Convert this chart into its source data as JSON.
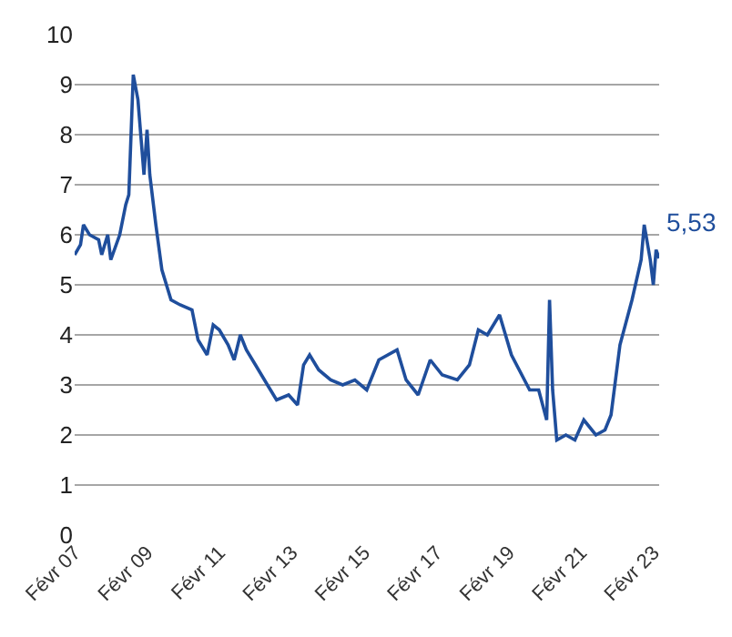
{
  "chart_data": {
    "type": "line",
    "x": [
      "2007-02-01",
      "2007-04-01",
      "2007-05-01",
      "2007-07-01",
      "2007-10-01",
      "2007-11-01",
      "2008-01-01",
      "2008-02-01",
      "2008-05-01",
      "2008-07-01",
      "2008-08-01",
      "2008-09-15",
      "2008-11-01",
      "2009-01-01",
      "2009-02-01",
      "2009-03-01",
      "2009-05-01",
      "2009-07-01",
      "2009-10-01",
      "2010-01-01",
      "2010-05-01",
      "2010-07-01",
      "2010-10-01",
      "2010-12-01",
      "2011-02-01",
      "2011-05-01",
      "2011-07-01",
      "2011-09-01",
      "2011-11-01",
      "2012-02-01",
      "2012-06-01",
      "2012-09-01",
      "2013-01-01",
      "2013-04-01",
      "2013-06-01",
      "2013-08-01",
      "2013-11-01",
      "2014-03-01",
      "2014-07-01",
      "2014-11-01",
      "2015-03-01",
      "2015-07-01",
      "2016-01-01",
      "2016-04-01",
      "2016-08-01",
      "2016-12-01",
      "2017-04-01",
      "2017-09-01",
      "2018-01-01",
      "2018-04-01",
      "2018-07-01",
      "2018-11-01",
      "2019-03-01",
      "2019-09-01",
      "2019-12-01",
      "2020-02-20",
      "2020-03-20",
      "2020-04-20",
      "2020-06-01",
      "2020-09-01",
      "2020-12-01",
      "2021-03-01",
      "2021-07-01",
      "2021-10-01",
      "2021-12-01",
      "2022-03-01",
      "2022-07-01",
      "2022-10-01",
      "2022-11-01",
      "2023-01-01",
      "2023-02-01",
      "2023-03-01",
      "2023-04-01"
    ],
    "series": [
      {
        "color": "#1f4e9c",
        "values": [
          5.6,
          5.8,
          6.2,
          6.0,
          5.9,
          5.6,
          6.0,
          5.5,
          6.0,
          6.6,
          6.8,
          9.2,
          8.7,
          7.2,
          8.1,
          7.2,
          6.2,
          5.3,
          4.7,
          4.6,
          4.5,
          3.9,
          3.6,
          4.2,
          4.1,
          3.8,
          3.5,
          4.0,
          3.7,
          3.4,
          3.0,
          2.7,
          2.8,
          2.6,
          3.4,
          3.6,
          3.3,
          3.1,
          3.0,
          3.1,
          2.9,
          3.5,
          3.7,
          3.1,
          2.8,
          3.5,
          3.2,
          3.1,
          3.4,
          4.1,
          4.0,
          4.4,
          3.6,
          2.9,
          2.9,
          2.3,
          4.7,
          2.9,
          1.9,
          2.0,
          1.9,
          2.3,
          2.0,
          2.1,
          2.4,
          3.8,
          4.7,
          5.5,
          6.2,
          5.5,
          5.0,
          5.7,
          5.53
        ]
      }
    ],
    "annotations": [
      {
        "text": "5,53",
        "x": "2023-04-01",
        "y": 5.53
      }
    ],
    "xlim": [
      "2007-02-01",
      "2023-04-01"
    ],
    "xticks": [
      {
        "value": "2007-02-01",
        "label": "Févr 07"
      },
      {
        "value": "2009-02-01",
        "label": "Févr 09"
      },
      {
        "value": "2011-02-01",
        "label": "Févr 11"
      },
      {
        "value": "2013-02-01",
        "label": "Févr 13"
      },
      {
        "value": "2015-02-01",
        "label": "Févr 15"
      },
      {
        "value": "2017-02-01",
        "label": "Févr 17"
      },
      {
        "value": "2019-02-01",
        "label": "Févr 19"
      },
      {
        "value": "2021-02-01",
        "label": "Févr 21"
      },
      {
        "value": "2023-02-01",
        "label": "Févr 23"
      }
    ],
    "ylim": [
      0,
      10
    ],
    "yticks": [
      0,
      1,
      2,
      3,
      4,
      5,
      6,
      7,
      8,
      9,
      10
    ],
    "grid": "y"
  }
}
